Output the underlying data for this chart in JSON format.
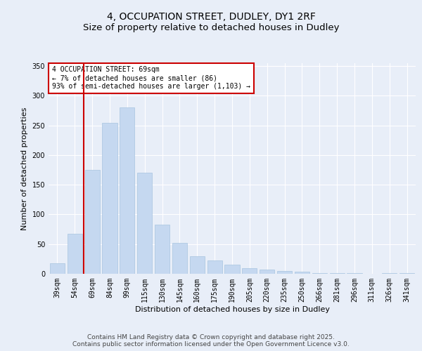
{
  "title_line1": "4, OCCUPATION STREET, DUDLEY, DY1 2RF",
  "title_line2": "Size of property relative to detached houses in Dudley",
  "xlabel": "Distribution of detached houses by size in Dudley",
  "ylabel": "Number of detached properties",
  "categories": [
    "39sqm",
    "54sqm",
    "69sqm",
    "84sqm",
    "99sqm",
    "115sqm",
    "130sqm",
    "145sqm",
    "160sqm",
    "175sqm",
    "190sqm",
    "205sqm",
    "220sqm",
    "235sqm",
    "250sqm",
    "266sqm",
    "281sqm",
    "296sqm",
    "311sqm",
    "326sqm",
    "341sqm"
  ],
  "values": [
    18,
    67,
    175,
    255,
    280,
    170,
    83,
    52,
    30,
    22,
    15,
    10,
    7,
    5,
    4,
    1,
    1,
    1,
    0,
    1,
    1
  ],
  "bar_color": "#c5d8f0",
  "bar_edge_color": "#a8c4e0",
  "red_line_index": 2,
  "red_line_color": "#cc0000",
  "annotation_text": "4 OCCUPATION STREET: 69sqm\n← 7% of detached houses are smaller (86)\n93% of semi-detached houses are larger (1,103) →",
  "annotation_box_facecolor": "#ffffff",
  "annotation_box_edgecolor": "#cc0000",
  "ylim": [
    0,
    355
  ],
  "yticks": [
    0,
    50,
    100,
    150,
    200,
    250,
    300,
    350
  ],
  "background_color": "#e8eef8",
  "plot_background_color": "#e8eef8",
  "footer_line1": "Contains HM Land Registry data © Crown copyright and database right 2025.",
  "footer_line2": "Contains public sector information licensed under the Open Government Licence v3.0.",
  "title_fontsize": 10,
  "subtitle_fontsize": 9.5,
  "annotation_fontsize": 7,
  "footer_fontsize": 6.5,
  "axis_label_fontsize": 8,
  "tick_fontsize": 7
}
